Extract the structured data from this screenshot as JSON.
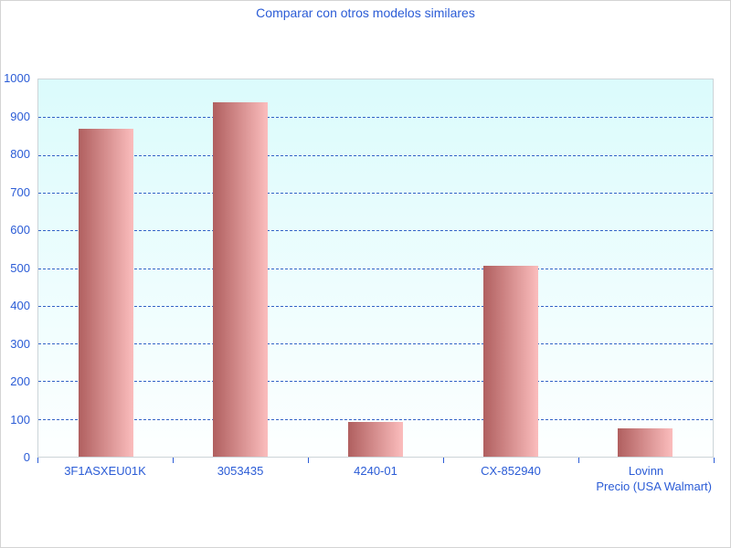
{
  "chart_data": {
    "type": "bar",
    "title": "Comparar con otros modelos similares",
    "categories": [
      "3F1ASXEU01K",
      "3053435",
      "4240-01",
      "CX-852940",
      "Lovinn"
    ],
    "values": [
      870,
      940,
      92,
      507,
      76
    ],
    "xlabel": "Precio (USA Walmart)",
    "ylabel": "",
    "ylim": [
      0,
      1000
    ],
    "y_ticks": [
      0,
      100,
      200,
      300,
      400,
      500,
      600,
      700,
      800,
      900,
      1000
    ],
    "grid": "horizontal-dashed",
    "legend": "none",
    "bar_color_style": "horizontal gradient dark-rose to light-pink"
  },
  "colors": {
    "title_text": "#2B5CD6",
    "axis_text": "#2B5CD6",
    "gridline": "#3363C6",
    "bar_gradient_left": "#B05F5F",
    "bar_gradient_right": "#FBBDBD",
    "plot_bg_top": "#DBFBFC",
    "plot_bg_bottom": "#FDFFFF",
    "plot_border": "#CCD4D8",
    "page_border": "#D4D4D4",
    "page_bg": "#FFFFFF"
  }
}
